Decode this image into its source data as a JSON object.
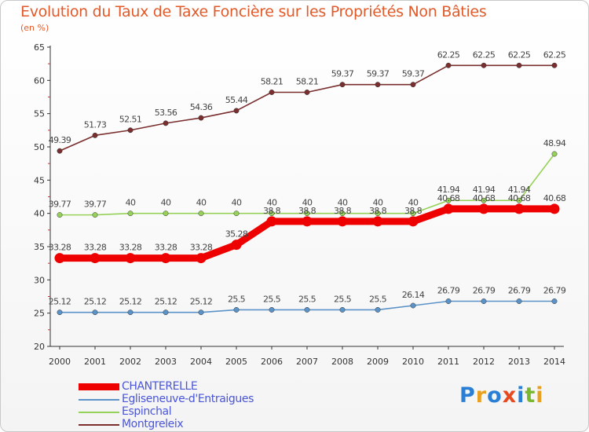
{
  "chart_data": {
    "type": "line",
    "title": "Evolution du Taux de Taxe Foncière sur les Propriétés Non Bâties",
    "ylabel": "(en %)",
    "xlabel": "",
    "categories": [
      "2000",
      "2001",
      "2002",
      "2003",
      "2004",
      "2005",
      "2006",
      "2007",
      "2008",
      "2009",
      "2010",
      "2011",
      "2012",
      "2013",
      "2014"
    ],
    "ylim": [
      20,
      65
    ],
    "yticks": [
      20,
      25,
      30,
      35,
      40,
      45,
      50,
      55,
      60,
      65
    ],
    "grid": false,
    "legend": "bottom-left",
    "series": [
      {
        "name": "CHANTERELLE",
        "color": "#ee0000",
        "values": [
          33.28,
          33.28,
          33.28,
          33.28,
          33.28,
          35.28,
          38.8,
          38.8,
          38.8,
          38.8,
          38.8,
          40.68,
          40.68,
          40.68,
          40.68
        ],
        "labels": [
          "33.28",
          "33.28",
          "33.28",
          "33.28",
          "33.28",
          "35.28",
          "38.8",
          "38.8",
          "38.8",
          "38.8",
          "38.8",
          "40.68",
          "40.68",
          "40.68",
          "40.68"
        ]
      },
      {
        "name": "Egliseneuve-d'Entraigues",
        "color": "#5b93c9",
        "values": [
          25.12,
          25.12,
          25.12,
          25.12,
          25.12,
          25.5,
          25.5,
          25.5,
          25.5,
          25.5,
          26.14,
          26.79,
          26.79,
          26.79,
          26.79
        ],
        "labels": [
          "25.12",
          "25.12",
          "25.12",
          "25.12",
          "25.12",
          "25.5",
          "25.5",
          "25.5",
          "25.5",
          "25.5",
          "26.14",
          "26.79",
          "26.79",
          "26.79",
          "26.79"
        ]
      },
      {
        "name": "Espinchal",
        "color": "#96d25a",
        "values": [
          39.77,
          39.77,
          40,
          40,
          40,
          40,
          40,
          40,
          40,
          40,
          40,
          41.94,
          41.94,
          41.94,
          48.94
        ],
        "labels": [
          "39.77",
          "39.77",
          "40",
          "40",
          "40",
          "40",
          "40",
          "40",
          "40",
          "40",
          "40",
          "41.94",
          "41.94",
          "41.94",
          "48.94"
        ]
      },
      {
        "name": "Montgreleix",
        "color": "#7a2e2e",
        "values": [
          49.39,
          51.73,
          52.51,
          53.56,
          54.36,
          55.44,
          58.21,
          58.21,
          59.37,
          59.37,
          59.37,
          62.25,
          62.25,
          62.25,
          62.25
        ],
        "labels": [
          "49.39",
          "51.73",
          "52.51",
          "53.56",
          "54.36",
          "55.44",
          "58.21",
          "58.21",
          "59.37",
          "59.37",
          "59.37",
          "62.25",
          "62.25",
          "62.25",
          "62.25"
        ]
      }
    ]
  },
  "logo": {
    "text": "Proxiti"
  }
}
